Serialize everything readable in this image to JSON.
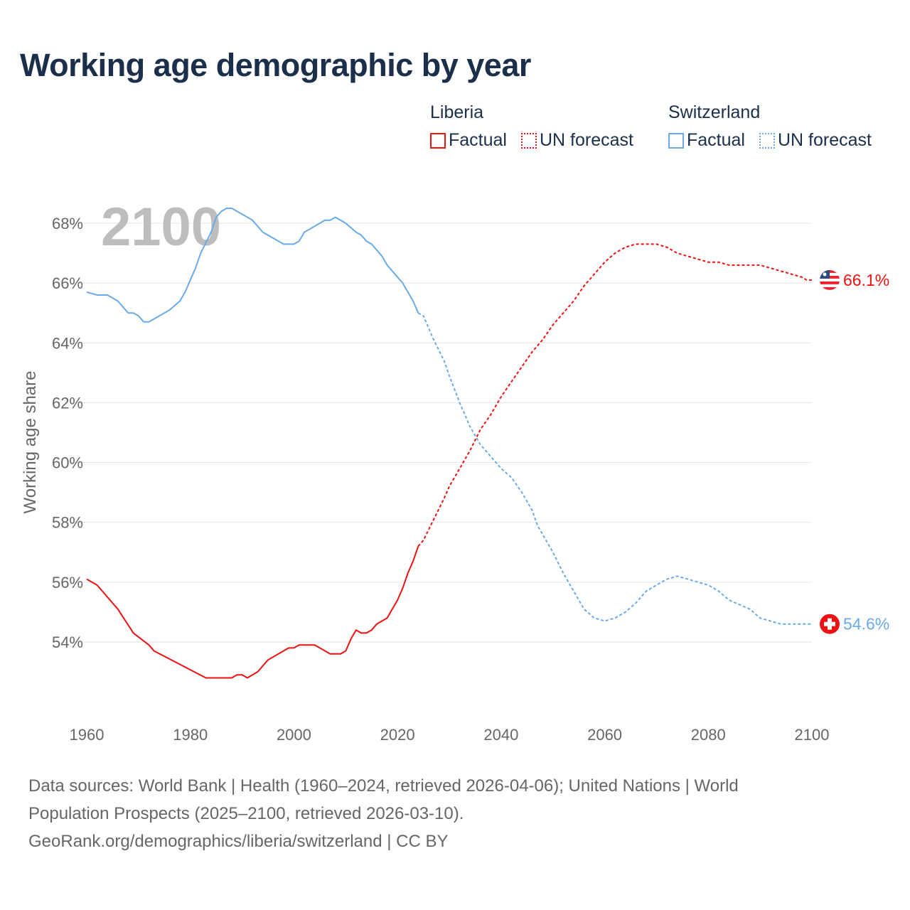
{
  "title": "Working age demographic by year",
  "legend": {
    "groups": [
      {
        "name": "Liberia",
        "color": "#ee1111",
        "items": [
          "Factual",
          "UN forecast"
        ]
      },
      {
        "name": "Switzerland",
        "color": "#6aaae8",
        "items": [
          "Factual",
          "UN forecast"
        ]
      }
    ]
  },
  "footer": {
    "line1": "Data sources: World Bank | Health (1960–2024, retrieved 2026-04-06); United Nations | World",
    "line2": "Population Prospects (2025–2100, retrieved 2026-03-10).",
    "line3": "GeoRank.org/demographics/liberia/switzerland | CC BY"
  },
  "chart_data": {
    "type": "line",
    "title": "Working age demographic by year",
    "current_year_label": "2100",
    "xlabel": "",
    "ylabel": "Working age share",
    "xlim": [
      1960,
      2100
    ],
    "ylim": [
      51.5,
      69
    ],
    "x_ticks": [
      "1960",
      "1980",
      "2000",
      "2020",
      "2040",
      "2060",
      "2080",
      "2100"
    ],
    "y_ticks": [
      "54%",
      "56%",
      "58%",
      "60%",
      "62%",
      "64%",
      "66%",
      "68%"
    ],
    "grid": true,
    "series": [
      {
        "name": "Liberia",
        "color": "#ee1111",
        "end_label": "66.1%",
        "flag": "liberia-flag",
        "factual": [
          [
            1960,
            56.1
          ],
          [
            1962,
            55.9
          ],
          [
            1963,
            55.7
          ],
          [
            1966,
            55.1
          ],
          [
            1969,
            54.3
          ],
          [
            1972,
            53.9
          ],
          [
            1973,
            53.7
          ],
          [
            1983,
            52.8
          ],
          [
            1988,
            52.8
          ],
          [
            1989,
            52.9
          ],
          [
            1990,
            52.9
          ],
          [
            1991,
            52.8
          ],
          [
            1993,
            53.0
          ],
          [
            1995,
            53.4
          ],
          [
            1999,
            53.8
          ],
          [
            2000,
            53.8
          ],
          [
            2001,
            53.9
          ],
          [
            2004,
            53.9
          ],
          [
            2007,
            53.6
          ],
          [
            2009,
            53.6
          ],
          [
            2010,
            53.7
          ],
          [
            2011,
            54.1
          ],
          [
            2012,
            54.4
          ],
          [
            2013,
            54.3
          ],
          [
            2014,
            54.3
          ],
          [
            2015,
            54.4
          ],
          [
            2016,
            54.6
          ],
          [
            2018,
            54.8
          ],
          [
            2020,
            55.4
          ],
          [
            2021,
            55.8
          ],
          [
            2022,
            56.3
          ],
          [
            2023,
            56.7
          ],
          [
            2024,
            57.2
          ]
        ],
        "forecast": [
          [
            2024,
            57.2
          ],
          [
            2025,
            57.4
          ],
          [
            2027,
            58.1
          ],
          [
            2029,
            58.8
          ],
          [
            2030,
            59.2
          ],
          [
            2032,
            59.8
          ],
          [
            2034,
            60.4
          ],
          [
            2036,
            61.1
          ],
          [
            2038,
            61.6
          ],
          [
            2040,
            62.2
          ],
          [
            2042,
            62.7
          ],
          [
            2044,
            63.2
          ],
          [
            2046,
            63.7
          ],
          [
            2048,
            64.1
          ],
          [
            2050,
            64.6
          ],
          [
            2052,
            65.0
          ],
          [
            2054,
            65.4
          ],
          [
            2056,
            65.9
          ],
          [
            2058,
            66.3
          ],
          [
            2060,
            66.7
          ],
          [
            2062,
            67.0
          ],
          [
            2064,
            67.2
          ],
          [
            2066,
            67.3
          ],
          [
            2070,
            67.3
          ],
          [
            2072,
            67.2
          ],
          [
            2074,
            67.0
          ],
          [
            2076,
            66.9
          ],
          [
            2078,
            66.8
          ],
          [
            2080,
            66.7
          ],
          [
            2082,
            66.7
          ],
          [
            2084,
            66.6
          ],
          [
            2090,
            66.6
          ],
          [
            2092,
            66.5
          ],
          [
            2094,
            66.4
          ],
          [
            2096,
            66.3
          ],
          [
            2098,
            66.2
          ],
          [
            2099,
            66.1
          ],
          [
            2100,
            66.1
          ]
        ]
      },
      {
        "name": "Switzerland",
        "color": "#6aaae8",
        "end_label": "54.6%",
        "flag": "switzerland-flag",
        "factual": [
          [
            1960,
            65.7
          ],
          [
            1962,
            65.6
          ],
          [
            1964,
            65.6
          ],
          [
            1966,
            65.4
          ],
          [
            1968,
            65.0
          ],
          [
            1969,
            65.0
          ],
          [
            1970,
            64.9
          ],
          [
            1971,
            64.7
          ],
          [
            1972,
            64.7
          ],
          [
            1974,
            64.9
          ],
          [
            1976,
            65.1
          ],
          [
            1978,
            65.4
          ],
          [
            1979,
            65.7
          ],
          [
            1980,
            66.1
          ],
          [
            1981,
            66.5
          ],
          [
            1982,
            67.0
          ],
          [
            1984,
            67.7
          ],
          [
            1985,
            68.2
          ],
          [
            1986,
            68.4
          ],
          [
            1987,
            68.5
          ],
          [
            1988,
            68.5
          ],
          [
            1990,
            68.3
          ],
          [
            1992,
            68.1
          ],
          [
            1994,
            67.7
          ],
          [
            1996,
            67.5
          ],
          [
            1998,
            67.3
          ],
          [
            2000,
            67.3
          ],
          [
            2001,
            67.4
          ],
          [
            2002,
            67.7
          ],
          [
            2004,
            67.9
          ],
          [
            2006,
            68.1
          ],
          [
            2007,
            68.1
          ],
          [
            2008,
            68.2
          ],
          [
            2010,
            68.0
          ],
          [
            2012,
            67.7
          ],
          [
            2013,
            67.6
          ],
          [
            2014,
            67.4
          ],
          [
            2015,
            67.3
          ],
          [
            2017,
            66.9
          ],
          [
            2018,
            66.6
          ],
          [
            2020,
            66.2
          ],
          [
            2021,
            66.0
          ],
          [
            2023,
            65.4
          ],
          [
            2024,
            65.0
          ]
        ],
        "forecast": [
          [
            2024,
            65.0
          ],
          [
            2025,
            64.9
          ],
          [
            2027,
            64.1
          ],
          [
            2029,
            63.4
          ],
          [
            2030,
            62.9
          ],
          [
            2032,
            62.0
          ],
          [
            2034,
            61.2
          ],
          [
            2036,
            60.6
          ],
          [
            2038,
            60.2
          ],
          [
            2040,
            59.8
          ],
          [
            2042,
            59.5
          ],
          [
            2044,
            59.0
          ],
          [
            2046,
            58.4
          ],
          [
            2047,
            57.9
          ],
          [
            2050,
            57.0
          ],
          [
            2052,
            56.3
          ],
          [
            2054,
            55.7
          ],
          [
            2056,
            55.1
          ],
          [
            2058,
            54.8
          ],
          [
            2060,
            54.7
          ],
          [
            2062,
            54.8
          ],
          [
            2064,
            55.0
          ],
          [
            2066,
            55.3
          ],
          [
            2068,
            55.7
          ],
          [
            2070,
            55.9
          ],
          [
            2072,
            56.1
          ],
          [
            2074,
            56.2
          ],
          [
            2076,
            56.1
          ],
          [
            2078,
            56.0
          ],
          [
            2080,
            55.9
          ],
          [
            2082,
            55.7
          ],
          [
            2084,
            55.4
          ],
          [
            2088,
            55.1
          ],
          [
            2090,
            54.8
          ],
          [
            2092,
            54.7
          ],
          [
            2094,
            54.6
          ],
          [
            2100,
            54.6
          ]
        ]
      }
    ]
  }
}
